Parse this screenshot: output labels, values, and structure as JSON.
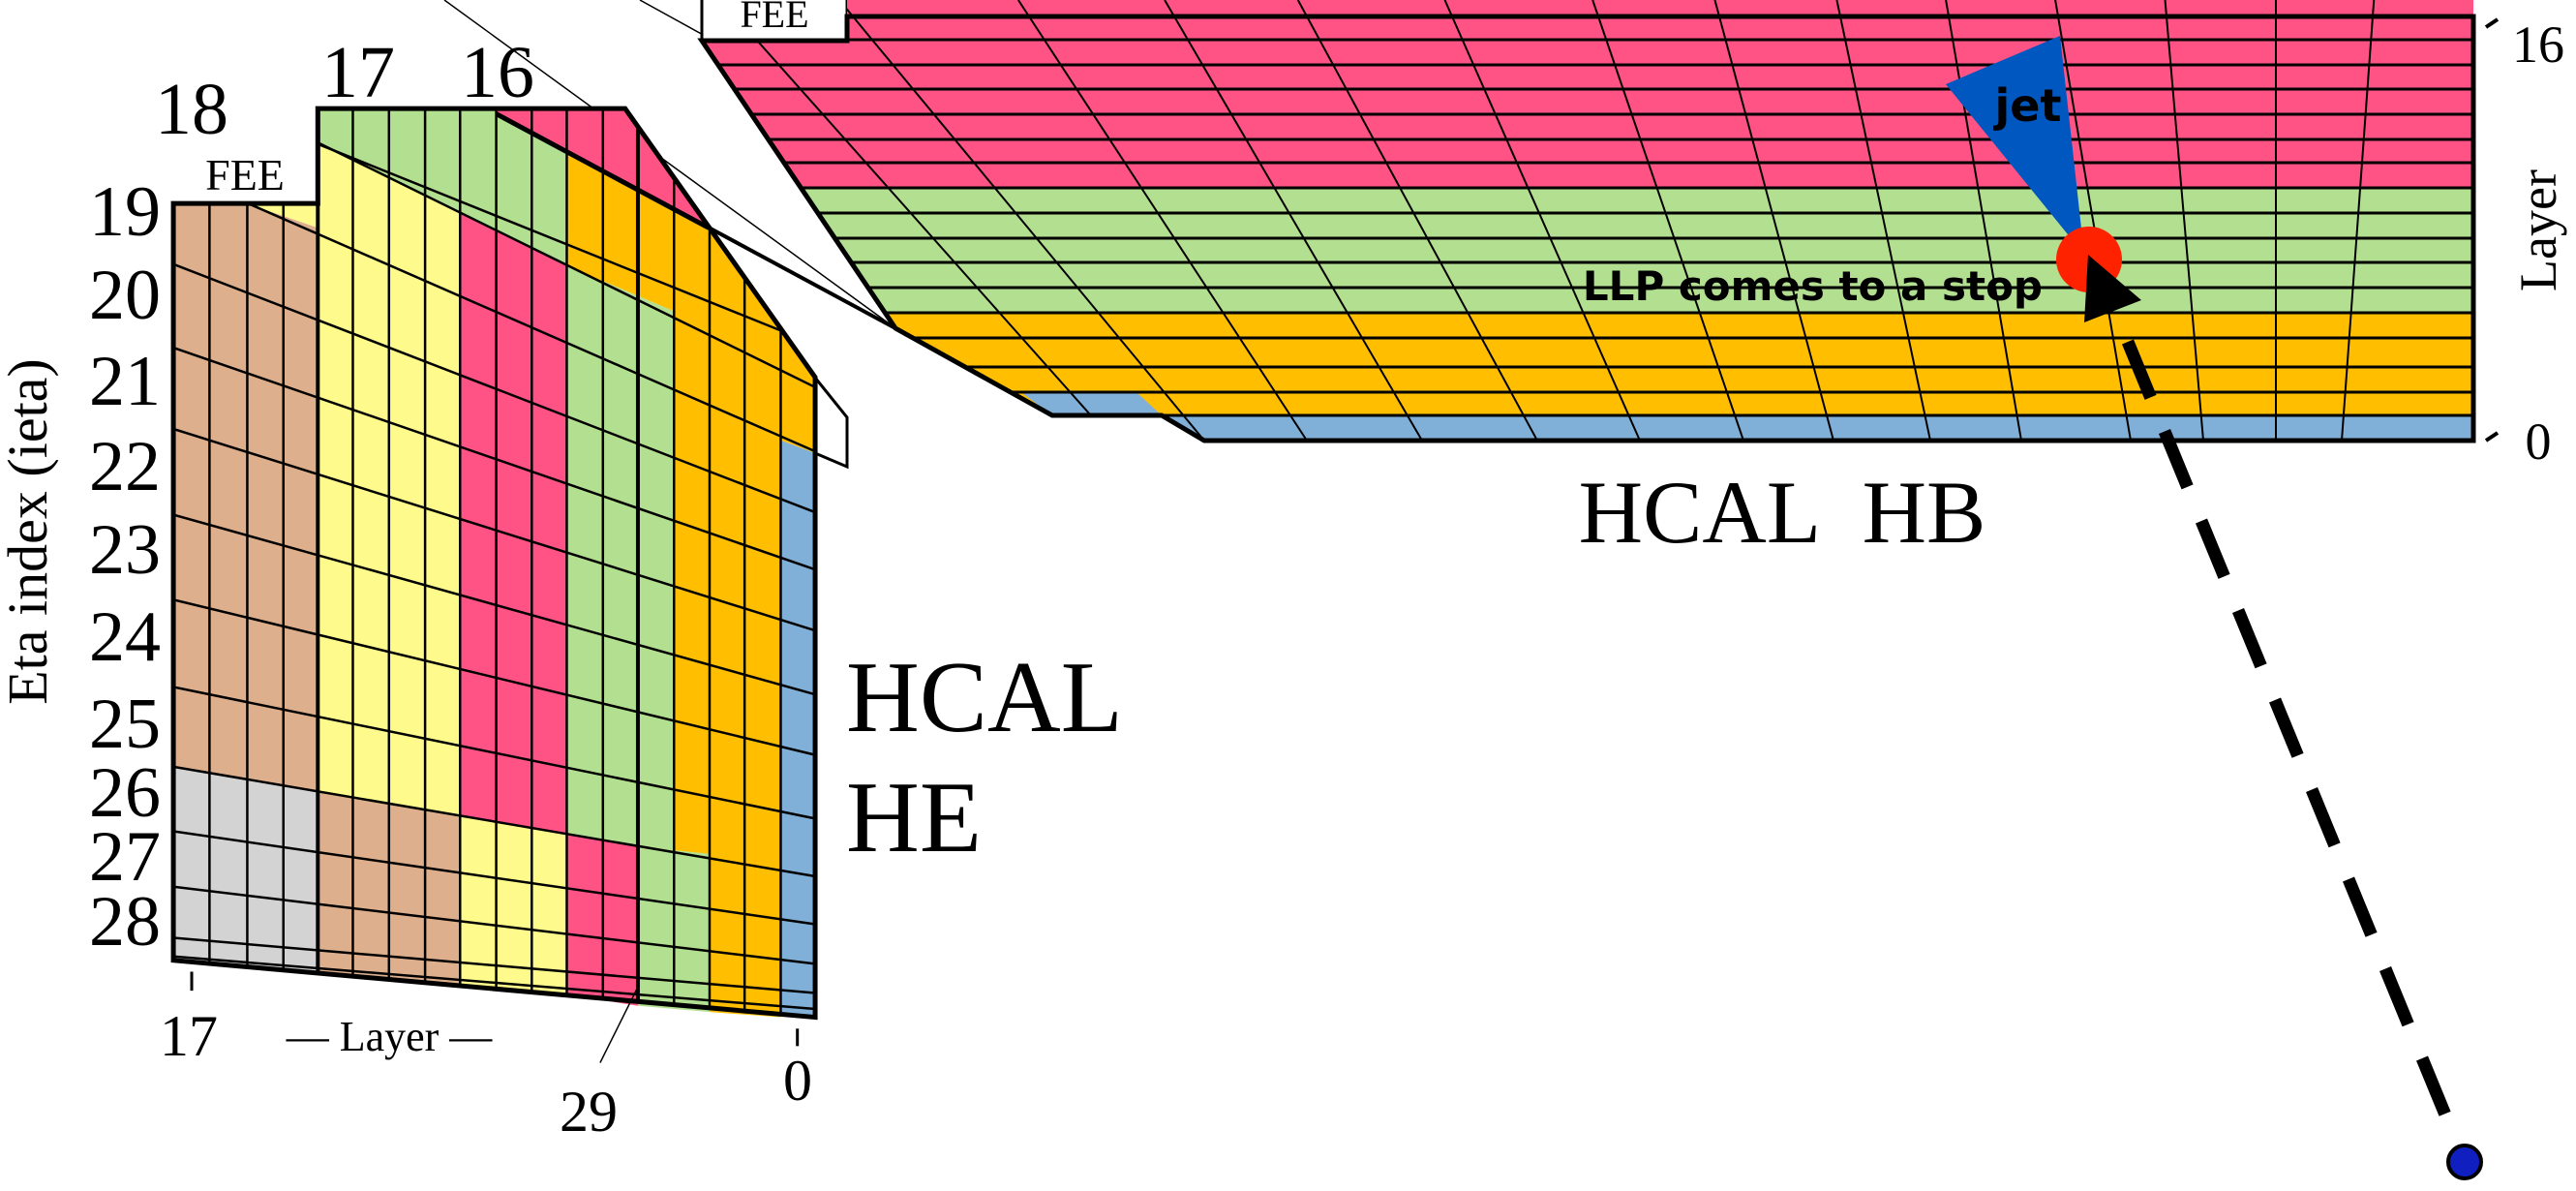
{
  "colors": {
    "pink": "#FF5285",
    "green": "#B2E090",
    "orange": "#FFBF00",
    "yellow": "#FFFA8C",
    "tan": "#DEAF8C",
    "gray": "#D3D3D3",
    "blue": "#80B0D8",
    "jet": "#0057C0",
    "stop_marker": "#FF2200",
    "origin_marker": "#1020C0"
  },
  "he": {
    "title_line1": "HCAL",
    "title_line2": "HE",
    "fee_label": "FEE",
    "top_labels": [
      "18",
      "17",
      "16"
    ],
    "eta_axis_label": "Eta index (ieta)",
    "eta_labels": [
      "19",
      "20",
      "21",
      "22",
      "23",
      "24",
      "25",
      "26",
      "27",
      "28"
    ],
    "layer_axis_label": "— Layer —",
    "layer_start": "17",
    "layer_mid": "29",
    "layer_end": "0"
  },
  "hb": {
    "title": "HCAL  HB",
    "fee_label": "FEE",
    "layer_axis_label": "Layer",
    "layer_top": "16",
    "layer_bottom": "0"
  },
  "annotations": {
    "jet_label": "jet",
    "stop_label": "LLP comes to a stop"
  }
}
